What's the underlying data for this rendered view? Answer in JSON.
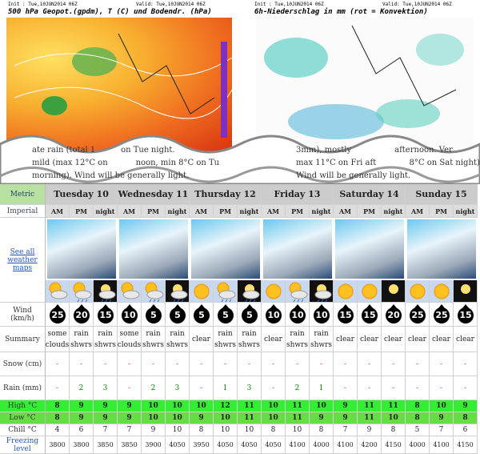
{
  "maps": [
    {
      "init": "Init : Tue,10JUN2014 06Z",
      "valid": "Valid: Tue,10JUN2014 06Z",
      "title": "500 hPa Geopot.(gpdm), T (C) und Bodendr. (hPa)"
    },
    {
      "init": "Init : Tue,10JUN2014 06Z",
      "valid": "Valid: Tue,10JUN2014 06Z",
      "title": "6h-Niederschlag in mm (rot = Konvektion)"
    }
  ],
  "overlay_text": {
    "left": [
      "ate rain (total 1          on Tue night.",
      "mild (max 12°C on           noon, min 8°C on Tu",
      "morning). Wind will be generally light."
    ],
    "right": [
      "3mm), mostly                 afternoon. Ver",
      "max 11°C on Fri aft             8°C on Sat night).",
      "Wind will be generally light."
    ]
  },
  "units": {
    "metric": "Metric",
    "imperial": "Imperial"
  },
  "maps_link": "See all weather maps",
  "row_labels": {
    "wind": "Wind (km/h)",
    "summary": "Summary",
    "snow": "Snow (cm)",
    "rain": "Rain (mm)",
    "high": "High °C",
    "low": "Low °C",
    "chill": "Chill °C",
    "freezing": "Freezing level"
  },
  "days": [
    "Tuesday 10",
    "Wednesday 11",
    "Thursday 12",
    "Friday 13",
    "Saturday 14",
    "Sunday 15"
  ],
  "periods": [
    "AM",
    "PM",
    "night"
  ],
  "wind": [
    25,
    20,
    15,
    10,
    5,
    5,
    5,
    5,
    5,
    10,
    10,
    10,
    15,
    15,
    20,
    25,
    25,
    15
  ],
  "summary": [
    "some clouds",
    "rain shwrs",
    "rain shwrs",
    "some clouds",
    "rain shwrs",
    "rain shwrs",
    "clear",
    "rain shwrs",
    "rain shwrs",
    "clear",
    "rain shwrs",
    "rain shwrs",
    "clear",
    "clear",
    "clear",
    "clear",
    "clear",
    "clear"
  ],
  "snow": [
    "-",
    "-",
    "-",
    "-",
    "-",
    "-",
    "-",
    "-",
    "-",
    "-",
    "-",
    "-",
    "-",
    "-",
    "-",
    "-",
    "-",
    "-"
  ],
  "rain": [
    "-",
    2,
    3,
    "-",
    2,
    3,
    "-",
    1,
    3,
    "-",
    2,
    1,
    "-",
    "-",
    "-",
    "-",
    "-",
    "-"
  ],
  "high": [
    8,
    9,
    9,
    9,
    10,
    10,
    10,
    12,
    11,
    10,
    11,
    10,
    9,
    11,
    11,
    8,
    10,
    9
  ],
  "low": [
    8,
    9,
    9,
    9,
    10,
    10,
    9,
    10,
    11,
    10,
    11,
    9,
    9,
    11,
    10,
    8,
    9,
    8
  ],
  "chill": [
    4,
    6,
    7,
    7,
    9,
    10,
    8,
    10,
    10,
    8,
    10,
    8,
    7,
    9,
    8,
    5,
    7,
    6
  ],
  "freezing": [
    3800,
    3800,
    3850,
    3850,
    3900,
    4050,
    3950,
    4050,
    4050,
    4050,
    4100,
    4000,
    4100,
    4200,
    4150,
    4000,
    4100,
    4150
  ]
}
